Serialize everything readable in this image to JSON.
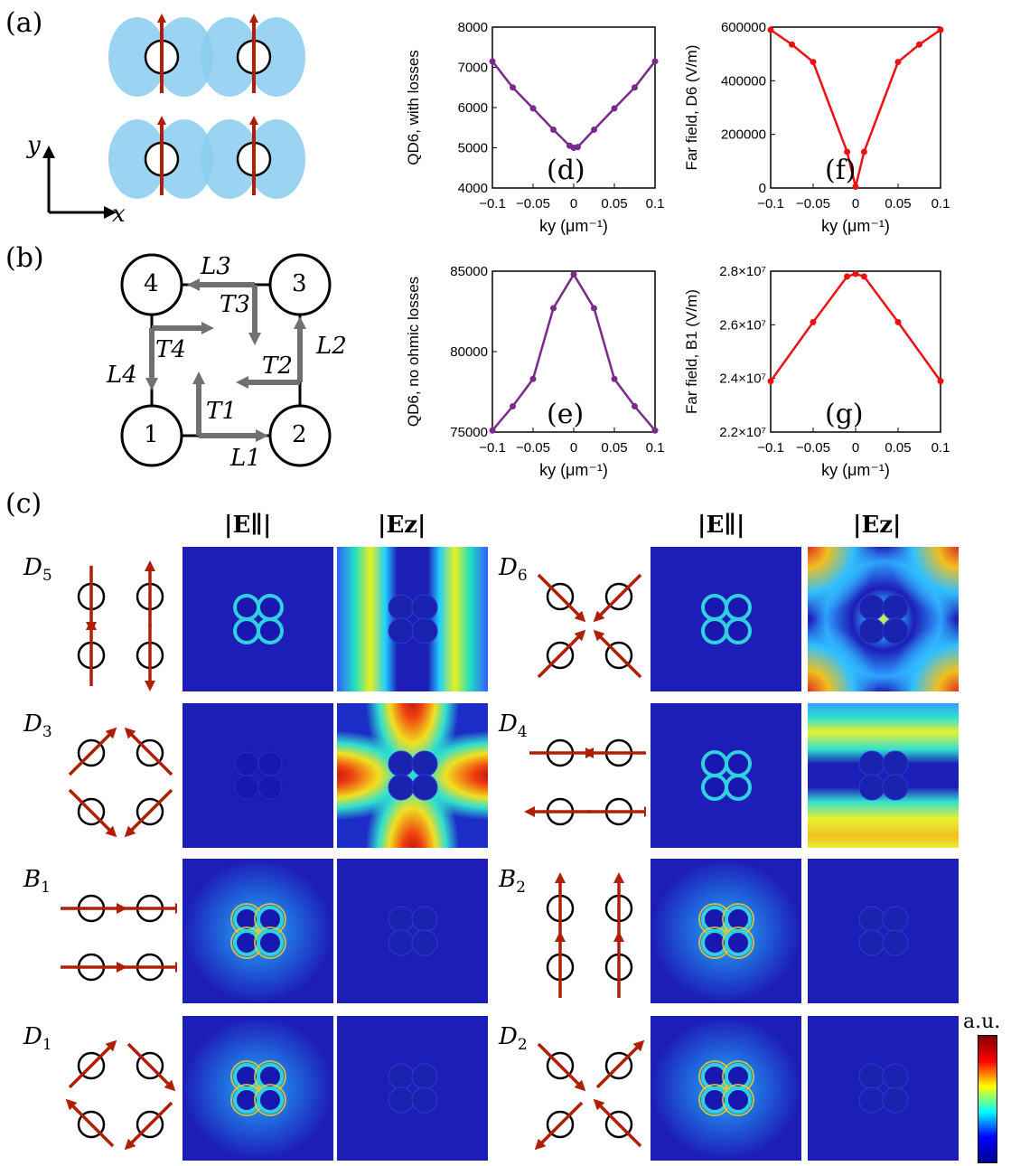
{
  "panel_labels": [
    "(a)",
    "(b)",
    "(c)",
    "(d)",
    "(e)",
    "(f)",
    "(g)"
  ],
  "axes_a": {
    "x": "x",
    "y": "y"
  },
  "diagram_b": {
    "nodes": [
      "1",
      "2",
      "3",
      "4"
    ],
    "L_labels": [
      "L1",
      "L2",
      "L3",
      "L4"
    ],
    "T_labels": [
      "T1",
      "T2",
      "T3",
      "T4"
    ]
  },
  "field_headers": [
    "|E∥|",
    "|Ez|"
  ],
  "modes": [
    "D5",
    "D6",
    "D3",
    "D4",
    "B1",
    "B2",
    "D1",
    "D2"
  ],
  "colorbar_label": "a.u.",
  "colors": {
    "arrow": "#b01e06",
    "series_purple": "#7a2a8a",
    "series_red": "#ee1111",
    "lobe": "#88ccf0",
    "field_bg": "#1014a8"
  },
  "chart_data": [
    {
      "panel": "(d)",
      "type": "line",
      "color": "#7a2a8a",
      "xlabel": "ky (μm⁻¹)",
      "ylabel": "QD6, with losses",
      "xlim": [
        -0.1,
        0.1
      ],
      "ylim": [
        4000,
        8000
      ],
      "xticks": [
        "-0.1",
        "-0.05",
        "0",
        "0.05",
        "0.1"
      ],
      "yticks": [
        "4000",
        "5000",
        "6000",
        "7000",
        "8000"
      ],
      "x": [
        -0.1,
        -0.075,
        -0.05,
        -0.025,
        -0.005,
        0,
        0.005,
        0.025,
        0.05,
        0.075,
        0.1
      ],
      "y": [
        7150,
        6500,
        5980,
        5450,
        5050,
        5000,
        5020,
        5450,
        5980,
        6500,
        7150
      ]
    },
    {
      "panel": "(e)",
      "type": "line",
      "color": "#7a2a8a",
      "xlabel": "ky (μm⁻¹)",
      "ylabel": "QD6, no ohmic losses",
      "xlim": [
        -0.1,
        0.1
      ],
      "ylim": [
        75000,
        85000
      ],
      "xticks": [
        "-0.1",
        "-0.05",
        "0",
        "0.05",
        "0.1"
      ],
      "yticks": [
        "75000",
        "80000",
        "85000"
      ],
      "x": [
        -0.1,
        -0.075,
        -0.05,
        -0.025,
        0,
        0.025,
        0.05,
        0.075,
        0.1
      ],
      "y": [
        75100,
        76600,
        78300,
        82700,
        84800,
        82700,
        78300,
        76600,
        75100
      ]
    },
    {
      "panel": "(f)",
      "type": "line",
      "color": "#ee1111",
      "xlabel": "ky (μm⁻¹)",
      "ylabel": "Far field, D6  (V/m)",
      "xlim": [
        -0.1,
        0.1
      ],
      "ylim": [
        0,
        600000
      ],
      "xticks": [
        "-0.1",
        "-0.05",
        "0",
        "0.05",
        "0.1"
      ],
      "yticks": [
        "0",
        "200000",
        "400000",
        "600000"
      ],
      "x": [
        -0.1,
        -0.075,
        -0.05,
        -0.01,
        0,
        0.01,
        0.05,
        0.075,
        0.1
      ],
      "y": [
        590000,
        535000,
        470000,
        135000,
        5000,
        135000,
        470000,
        535000,
        590000
      ]
    },
    {
      "panel": "(g)",
      "type": "line",
      "color": "#ee1111",
      "xlabel": "ky (μm⁻¹)",
      "ylabel": "Far field, B1  (V/m)",
      "xlim": [
        -0.1,
        0.1
      ],
      "ylim": [
        22000000.0,
        28000000.0
      ],
      "xticks": [
        "-0.1",
        "-0.05",
        "0",
        "0.05",
        "0.1"
      ],
      "yticks": [
        "2.2×10⁷",
        "2.4×10⁷",
        "2.6×10⁷",
        "2.8×10⁷"
      ],
      "x": [
        -0.1,
        -0.05,
        -0.01,
        0,
        0.01,
        0.05,
        0.1
      ],
      "y": [
        23900000.0,
        26100000.0,
        27800000.0,
        27900000.0,
        27800000.0,
        26100000.0,
        23900000.0
      ]
    }
  ]
}
